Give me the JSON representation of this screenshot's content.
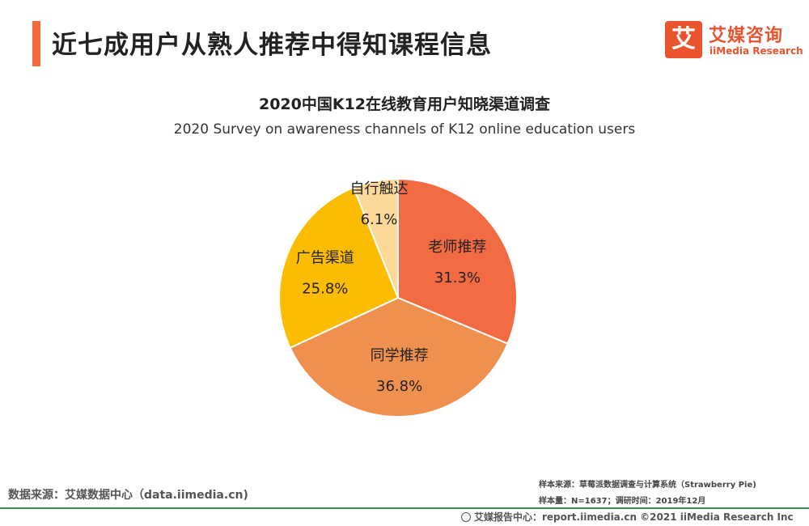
{
  "header": {
    "headline": "近七成用户从熟人推荐中得知课程信息",
    "logo_mark": "艾",
    "logo_cn": "艾媒咨询",
    "logo_en": "iiMedia Research"
  },
  "chart_data": {
    "type": "pie",
    "title": "2020中国K12在线教育用户知晓渠道调查",
    "subtitle": "2020 Survey on awareness channels of K12 online education users",
    "slices": [
      {
        "label": "老师推荐",
        "value": 31.3,
        "value_label": "31.3%",
        "color": "#f26b43"
      },
      {
        "label": "同学推荐",
        "value": 36.8,
        "value_label": "36.8%",
        "color": "#ef904e"
      },
      {
        "label": "广告渠道",
        "value": 25.8,
        "value_label": "25.8%",
        "color": "#fbbc02"
      },
      {
        "label": "自行触达",
        "value": 6.1,
        "value_label": "6.1%",
        "color": "#fdd897"
      }
    ],
    "start": "12 o'clock",
    "direction": "clockwise"
  },
  "footer": {
    "data_source": "数据来源：艾媒数据中心（data.iimedia.cn)",
    "sample_source": "样本来源：草莓派数据调查与计算系统（Strawberry Pie)",
    "sample_size": "样本量：N=1637；调研时间：2019年12月",
    "report_center": "艾媒报告中心：report.iimedia.cn   ©2021 iiMedia Research  Inc"
  }
}
